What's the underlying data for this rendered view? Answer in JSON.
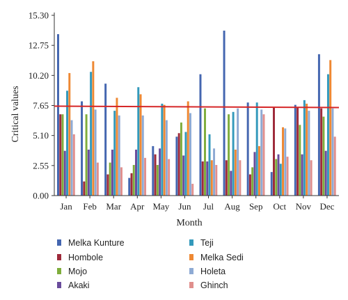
{
  "chart_data": {
    "type": "bar",
    "title": "",
    "xlabel": "Month",
    "ylabel": "Critical values",
    "ylim": [
      0,
      15.3
    ],
    "yticks": [
      "0.00",
      "2.55",
      "5.10",
      "7.65",
      "10.20",
      "12.75",
      "15.30"
    ],
    "categories": [
      "Jan",
      "Feb",
      "Mar",
      "Apr",
      "May",
      "Jun",
      "Jul",
      "Aug",
      "Sep",
      "Oct",
      "Nov",
      "Dec"
    ],
    "threshold": {
      "value": 7.65,
      "color": "#d62728"
    },
    "grid": false,
    "legend_position": "bottom",
    "series": [
      {
        "name": "Melka Kunture",
        "color": "#4466b0",
        "values": [
          13.7,
          8.0,
          9.5,
          1.5,
          4.2,
          5.0,
          10.3,
          14.0,
          7.9,
          2.0,
          7.7,
          12.0
        ]
      },
      {
        "name": "Hombole",
        "color": "#9e2a3a",
        "values": [
          6.9,
          1.2,
          1.8,
          1.9,
          3.5,
          5.3,
          2.9,
          3.0,
          1.8,
          7.5,
          7.5,
          7.4
        ]
      },
      {
        "name": "Mojo",
        "color": "#7fad3c",
        "values": [
          6.9,
          6.9,
          2.8,
          2.6,
          2.6,
          6.2,
          7.4,
          6.9,
          2.4,
          3.1,
          6.0,
          6.7
        ]
      },
      {
        "name": "Akaki",
        "color": "#6a4c9c",
        "values": [
          3.8,
          3.9,
          3.9,
          3.9,
          4.0,
          3.4,
          2.9,
          2.1,
          3.7,
          3.5,
          3.5,
          3.8
        ]
      },
      {
        "name": "Teji",
        "color": "#3399bb",
        "values": [
          8.9,
          10.5,
          7.2,
          9.2,
          7.8,
          5.4,
          5.2,
          7.1,
          7.9,
          2.7,
          8.1,
          10.3
        ]
      },
      {
        "name": "Melka Sedi",
        "color": "#ee8833",
        "values": [
          10.4,
          11.4,
          8.3,
          8.6,
          7.7,
          8.0,
          3.0,
          3.9,
          4.2,
          5.8,
          7.8,
          11.5
        ]
      },
      {
        "name": "Holeta",
        "color": "#8eaad4",
        "values": [
          6.4,
          7.3,
          6.8,
          6.8,
          6.4,
          7.0,
          4.0,
          7.4,
          7.3,
          5.7,
          7.2,
          7.4
        ]
      },
      {
        "name": "Ghinch",
        "color": "#e08f8d",
        "values": [
          5.2,
          2.8,
          2.4,
          3.2,
          3.1,
          1.0,
          2.6,
          3.0,
          6.9,
          3.3,
          3.0,
          5.0
        ]
      }
    ]
  }
}
